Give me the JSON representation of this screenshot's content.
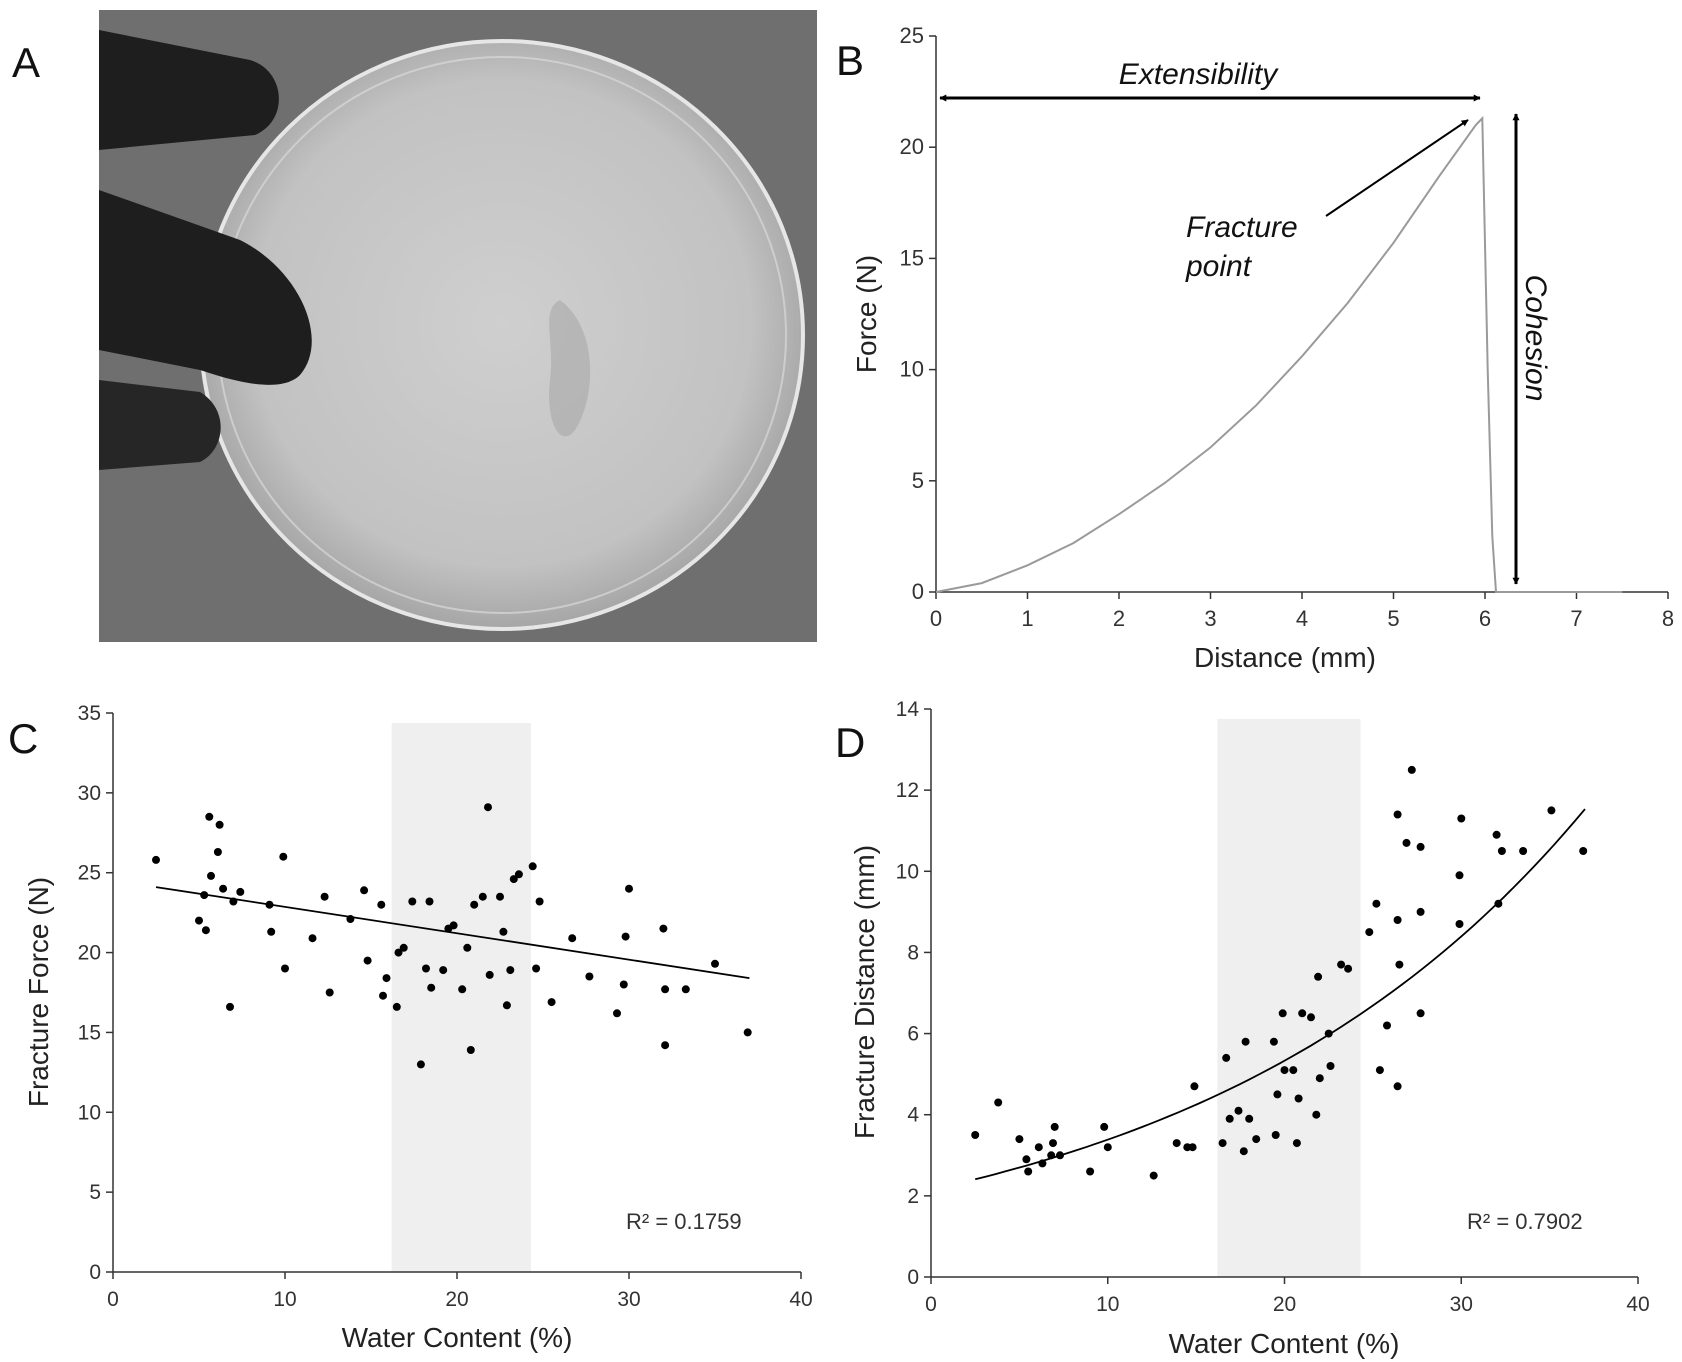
{
  "figure": {
    "panel_letters": [
      "A",
      "B",
      "C",
      "D"
    ]
  },
  "colors": {
    "photo_bg": "#6f6f6f",
    "dish": "#c9c9c9",
    "glove": "#1e1e1e",
    "curve": "#9a9a9a",
    "axis": "#333333",
    "shade": "#efefef",
    "point": "#000000"
  },
  "chart_data": [
    {
      "panel": "B",
      "type": "line",
      "xlabel": "Distance (mm)",
      "ylabel": "Force (N)",
      "xlim": [
        0,
        8
      ],
      "ylim": [
        0,
        25
      ],
      "xticks": [
        "0",
        "1",
        "2",
        "3",
        "4",
        "5",
        "6",
        "7",
        "8"
      ],
      "yticks": [
        "0",
        "5",
        "10",
        "15",
        "20",
        "25"
      ],
      "series": [
        {
          "name": "force-distance",
          "x": [
            0,
            0.5,
            1,
            1.5,
            2,
            2.5,
            3,
            3.5,
            4,
            4.5,
            5,
            5.5,
            5.9,
            5.97,
            6.03,
            6.08,
            6.12,
            6.2,
            7.5
          ],
          "y": [
            0,
            0.4,
            1.2,
            2.2,
            3.5,
            4.9,
            6.5,
            8.4,
            10.6,
            13.0,
            15.7,
            18.7,
            21.0,
            21.3,
            10.0,
            2.5,
            0,
            0,
            0
          ]
        }
      ],
      "annotations": {
        "extensibility": "Extensibility",
        "fracture_line1": "Fracture",
        "fracture_line2": "point",
        "cohesion": "Cohesion"
      }
    },
    {
      "panel": "C",
      "type": "scatter",
      "xlabel": "Water Content (%)",
      "ylabel": "Fracture Force (N)",
      "xlim": [
        0,
        40
      ],
      "ylim": [
        0,
        35
      ],
      "xticks": [
        "0",
        "10",
        "20",
        "30",
        "40"
      ],
      "yticks": [
        "0",
        "5",
        "10",
        "15",
        "20",
        "25",
        "30",
        "35"
      ],
      "shaded_region_x": [
        16.2,
        24.3
      ],
      "r_squared_label": "R² = 0.1759",
      "trendline": {
        "type": "linear",
        "x": [
          2.5,
          37
        ],
        "y": [
          24.1,
          18.4
        ]
      },
      "points": [
        [
          2.5,
          25.8
        ],
        [
          5.0,
          22.0
        ],
        [
          5.3,
          23.6
        ],
        [
          5.4,
          21.4
        ],
        [
          5.6,
          28.5
        ],
        [
          5.7,
          24.8
        ],
        [
          6.1,
          26.3
        ],
        [
          6.2,
          28.0
        ],
        [
          6.4,
          24.0
        ],
        [
          6.8,
          16.6
        ],
        [
          7.0,
          23.2
        ],
        [
          7.4,
          23.8
        ],
        [
          9.1,
          23.0
        ],
        [
          9.2,
          21.3
        ],
        [
          9.9,
          26.0
        ],
        [
          10.0,
          19.0
        ],
        [
          11.6,
          20.9
        ],
        [
          12.3,
          23.5
        ],
        [
          12.6,
          17.5
        ],
        [
          13.8,
          22.1
        ],
        [
          14.6,
          23.9
        ],
        [
          14.8,
          19.5
        ],
        [
          15.6,
          23.0
        ],
        [
          15.7,
          17.3
        ],
        [
          15.9,
          18.4
        ],
        [
          16.5,
          16.6
        ],
        [
          16.6,
          20.0
        ],
        [
          16.9,
          20.3
        ],
        [
          17.4,
          23.2
        ],
        [
          17.9,
          13.0
        ],
        [
          18.2,
          19.0
        ],
        [
          18.4,
          23.2
        ],
        [
          18.5,
          17.8
        ],
        [
          19.2,
          18.9
        ],
        [
          19.5,
          21.5
        ],
        [
          19.8,
          21.7
        ],
        [
          20.3,
          17.7
        ],
        [
          20.6,
          20.3
        ],
        [
          20.8,
          13.9
        ],
        [
          21.0,
          23.0
        ],
        [
          21.5,
          23.5
        ],
        [
          21.8,
          29.1
        ],
        [
          21.9,
          18.6
        ],
        [
          22.5,
          23.5
        ],
        [
          22.7,
          21.3
        ],
        [
          22.9,
          16.7
        ],
        [
          23.1,
          18.9
        ],
        [
          23.3,
          24.6
        ],
        [
          23.6,
          24.9
        ],
        [
          24.4,
          25.4
        ],
        [
          24.6,
          19.0
        ],
        [
          24.8,
          23.2
        ],
        [
          25.5,
          16.9
        ],
        [
          26.7,
          20.9
        ],
        [
          27.7,
          18.5
        ],
        [
          29.3,
          16.2
        ],
        [
          29.7,
          18.0
        ],
        [
          29.8,
          21.0
        ],
        [
          30.0,
          24.0
        ],
        [
          32.0,
          21.5
        ],
        [
          32.1,
          17.7
        ],
        [
          32.1,
          14.2
        ],
        [
          33.3,
          17.7
        ],
        [
          35.0,
          19.3
        ],
        [
          36.9,
          15.0
        ]
      ]
    },
    {
      "panel": "D",
      "type": "scatter",
      "xlabel": "Water Content (%)",
      "ylabel": "Fracture Distance (mm)",
      "xlim": [
        0,
        40
      ],
      "ylim": [
        0,
        14
      ],
      "xticks": [
        "0",
        "10",
        "20",
        "30",
        "40"
      ],
      "yticks": [
        "0",
        "2",
        "4",
        "6",
        "8",
        "10",
        "12",
        "14"
      ],
      "shaded_region_x": [
        16.2,
        24.3
      ],
      "r_squared_label": "R² = 0.7902",
      "trendline": {
        "type": "exponential",
        "a": 2.15,
        "b": 0.0454,
        "x_range": [
          2.5,
          37
        ]
      },
      "points": [
        [
          2.5,
          3.5
        ],
        [
          3.8,
          4.3
        ],
        [
          5.0,
          3.4
        ],
        [
          5.4,
          2.9
        ],
        [
          5.5,
          2.6
        ],
        [
          6.1,
          3.2
        ],
        [
          6.3,
          2.8
        ],
        [
          6.8,
          3.0
        ],
        [
          6.9,
          3.3
        ],
        [
          7.0,
          3.7
        ],
        [
          7.3,
          3.0
        ],
        [
          9.0,
          2.6
        ],
        [
          9.8,
          3.7
        ],
        [
          10.0,
          3.2
        ],
        [
          12.6,
          2.5
        ],
        [
          13.9,
          3.3
        ],
        [
          14.5,
          3.2
        ],
        [
          14.8,
          3.2
        ],
        [
          14.9,
          4.7
        ],
        [
          16.5,
          3.3
        ],
        [
          16.7,
          5.4
        ],
        [
          16.9,
          3.9
        ],
        [
          17.4,
          4.1
        ],
        [
          17.7,
          3.1
        ],
        [
          17.8,
          5.8
        ],
        [
          18.0,
          3.9
        ],
        [
          18.4,
          3.4
        ],
        [
          19.4,
          5.8
        ],
        [
          19.5,
          3.5
        ],
        [
          19.6,
          4.5
        ],
        [
          19.9,
          6.5
        ],
        [
          20.0,
          5.1
        ],
        [
          20.5,
          5.1
        ],
        [
          20.7,
          3.3
        ],
        [
          20.8,
          4.4
        ],
        [
          21.0,
          6.5
        ],
        [
          21.5,
          6.4
        ],
        [
          21.8,
          4.0
        ],
        [
          21.9,
          7.4
        ],
        [
          22.0,
          4.9
        ],
        [
          22.5,
          6.0
        ],
        [
          22.6,
          5.2
        ],
        [
          23.2,
          7.7
        ],
        [
          23.6,
          7.6
        ],
        [
          24.8,
          8.5
        ],
        [
          25.2,
          9.2
        ],
        [
          25.4,
          5.1
        ],
        [
          25.8,
          6.2
        ],
        [
          26.4,
          4.7
        ],
        [
          26.4,
          8.8
        ],
        [
          26.4,
          11.4
        ],
        [
          26.5,
          7.7
        ],
        [
          26.9,
          10.7
        ],
        [
          27.2,
          12.5
        ],
        [
          27.7,
          6.5
        ],
        [
          27.7,
          9.0
        ],
        [
          27.7,
          10.6
        ],
        [
          29.9,
          8.7
        ],
        [
          29.9,
          9.9
        ],
        [
          30.0,
          11.3
        ],
        [
          32.0,
          10.9
        ],
        [
          32.1,
          9.2
        ],
        [
          32.3,
          10.5
        ],
        [
          33.5,
          10.5
        ],
        [
          35.1,
          11.5
        ],
        [
          36.9,
          10.5
        ]
      ]
    }
  ]
}
